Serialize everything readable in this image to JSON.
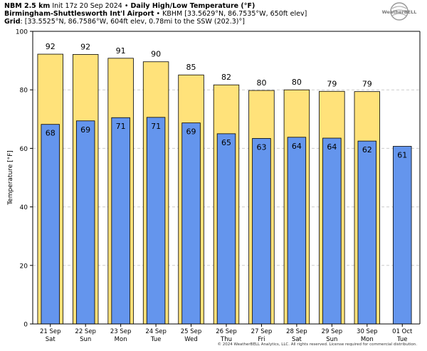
{
  "header": {
    "line1_bold": "NBM 2.5 km",
    "line1_init": "Init 17z 20 Sep 2024",
    "line1_sep": "•",
    "line1_title": "Daily High/Low Temperature (°F)",
    "line2_bold": "Birmingham-Shuttlesworth Int'l Airport",
    "line2_sep": "•",
    "line2_rest": "KBHM [33.5629°N, 86.7535°W, 650ft elev]",
    "line3_bold": "Grid",
    "line3_rest": ": [33.5525°N, 86.7586°W, 604ft elev, 0.78mi to the SSW (202.3)°]"
  },
  "logo_text": "WeatherBELL",
  "footer": "© 2024 WeatherBELL Analytics, LLC. All rights reserved. License required for commercial distribution.",
  "colors": {
    "high": "#ffe27a",
    "low": "#6495ed",
    "outline": "#000000",
    "grid": "#cccccc"
  },
  "chart_data": {
    "type": "bar",
    "ylabel": "Temperature [°F]",
    "ylim": [
      0,
      100
    ],
    "yticks": [
      0,
      20,
      40,
      60,
      80,
      100
    ],
    "grid": true,
    "categories": [
      [
        "21 Sep",
        "Sat"
      ],
      [
        "22 Sep",
        "Sun"
      ],
      [
        "23 Sep",
        "Mon"
      ],
      [
        "24 Sep",
        "Tue"
      ],
      [
        "25 Sep",
        "Wed"
      ],
      [
        "26 Sep",
        "Thu"
      ],
      [
        "27 Sep",
        "Fri"
      ],
      [
        "28 Sep",
        "Sat"
      ],
      [
        "29 Sep",
        "Sun"
      ],
      [
        "30 Sep",
        "Mon"
      ],
      [
        "01 Oct",
        "Tue"
      ]
    ],
    "series": [
      {
        "name": "High",
        "labels": [
          "92",
          "92",
          "91",
          "90",
          "85",
          "82",
          "80",
          "80",
          "79",
          "79",
          null
        ],
        "values": [
          92.2,
          92.1,
          90.8,
          89.6,
          85.1,
          81.7,
          79.8,
          80.0,
          79.5,
          79.4,
          null
        ]
      },
      {
        "name": "Low",
        "labels": [
          "68",
          "69",
          "71",
          "71",
          "69",
          "65",
          "63",
          "64",
          "64",
          "62",
          "61"
        ],
        "values": [
          68.2,
          69.4,
          70.5,
          70.6,
          68.7,
          65.0,
          63.4,
          63.8,
          63.5,
          62.5,
          60.7
        ]
      }
    ]
  }
}
